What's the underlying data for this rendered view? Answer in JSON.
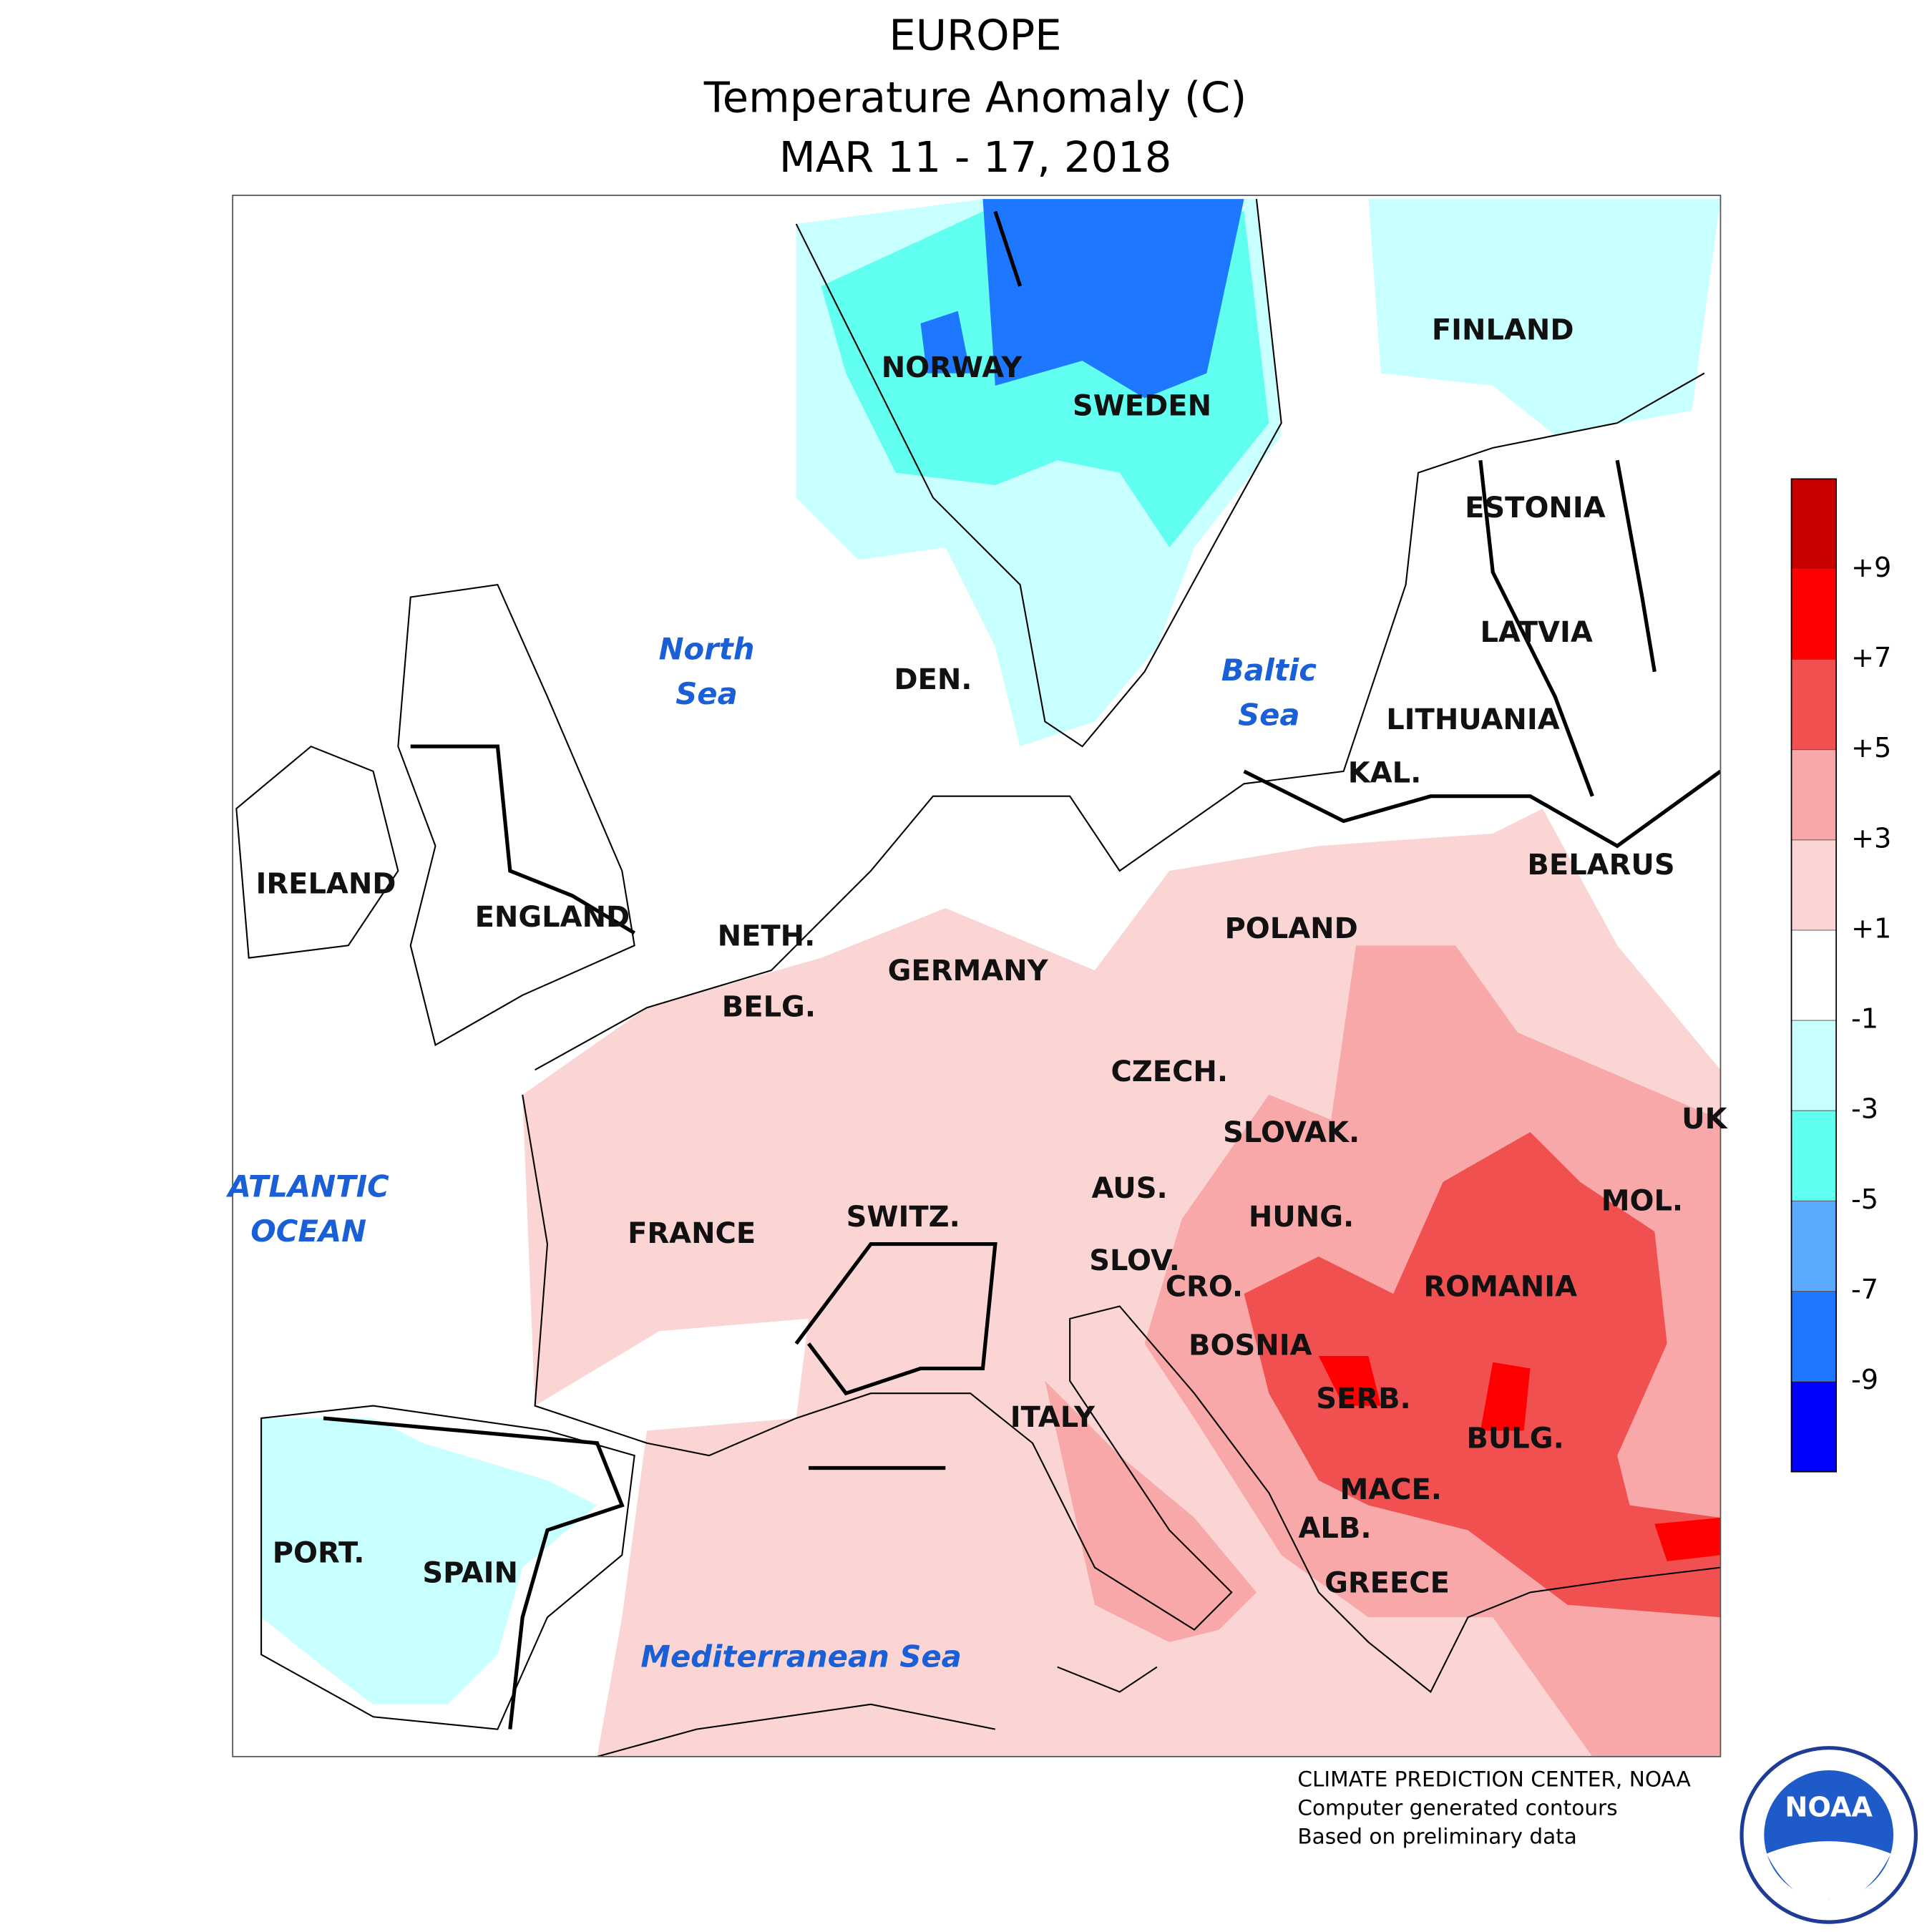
{
  "header": {
    "title": "EUROPE",
    "subtitle": "Temperature Anomaly (C)",
    "period": "MAR 11 - 17, 2018"
  },
  "map": {
    "country_labels": [
      "NORWAY",
      "SWEDEN",
      "FINLAND",
      "ESTONIA",
      "LATVIA",
      "LITHUANIA",
      "KAL.",
      "BELARUS",
      "DEN.",
      "IRELAND",
      "ENGLAND",
      "NETH.",
      "BELG.",
      "GERMANY",
      "POLAND",
      "CZECH.",
      "SLOVAK.",
      "UK",
      "AUS.",
      "HUNG.",
      "MOL.",
      "SWITZ.",
      "FRANCE",
      "SLOV.",
      "CRO.",
      "ROMANIA",
      "BOSNIA",
      "SERB.",
      "BULG.",
      "ITALY",
      "MACE.",
      "ALB.",
      "GREECE",
      "PORT.",
      "SPAIN"
    ],
    "water_labels": [
      [
        "North",
        "Sea"
      ],
      [
        "Baltic",
        "Sea"
      ],
      [
        "ATLANTIC",
        "OCEAN"
      ],
      [
        "Mediterranean Sea"
      ]
    ]
  },
  "legend": {
    "labels": [
      "+9",
      "+7",
      "+5",
      "+3",
      "+1",
      "-1",
      "-3",
      "-5",
      "-7",
      "-9"
    ],
    "colors": [
      "#c80000",
      "#ff0000",
      "#f05050",
      "#f8a8a8",
      "#fbd4d4",
      "#ffffff",
      "#c8ffff",
      "#60fff0",
      "#5aaaff",
      "#1e78ff",
      "#0000ff"
    ]
  },
  "footer": {
    "lines": [
      "CLIMATE PREDICTION CENTER, NOAA",
      "Computer generated contours",
      "Based on preliminary data"
    ]
  },
  "logo": {
    "text": "NOAA"
  }
}
